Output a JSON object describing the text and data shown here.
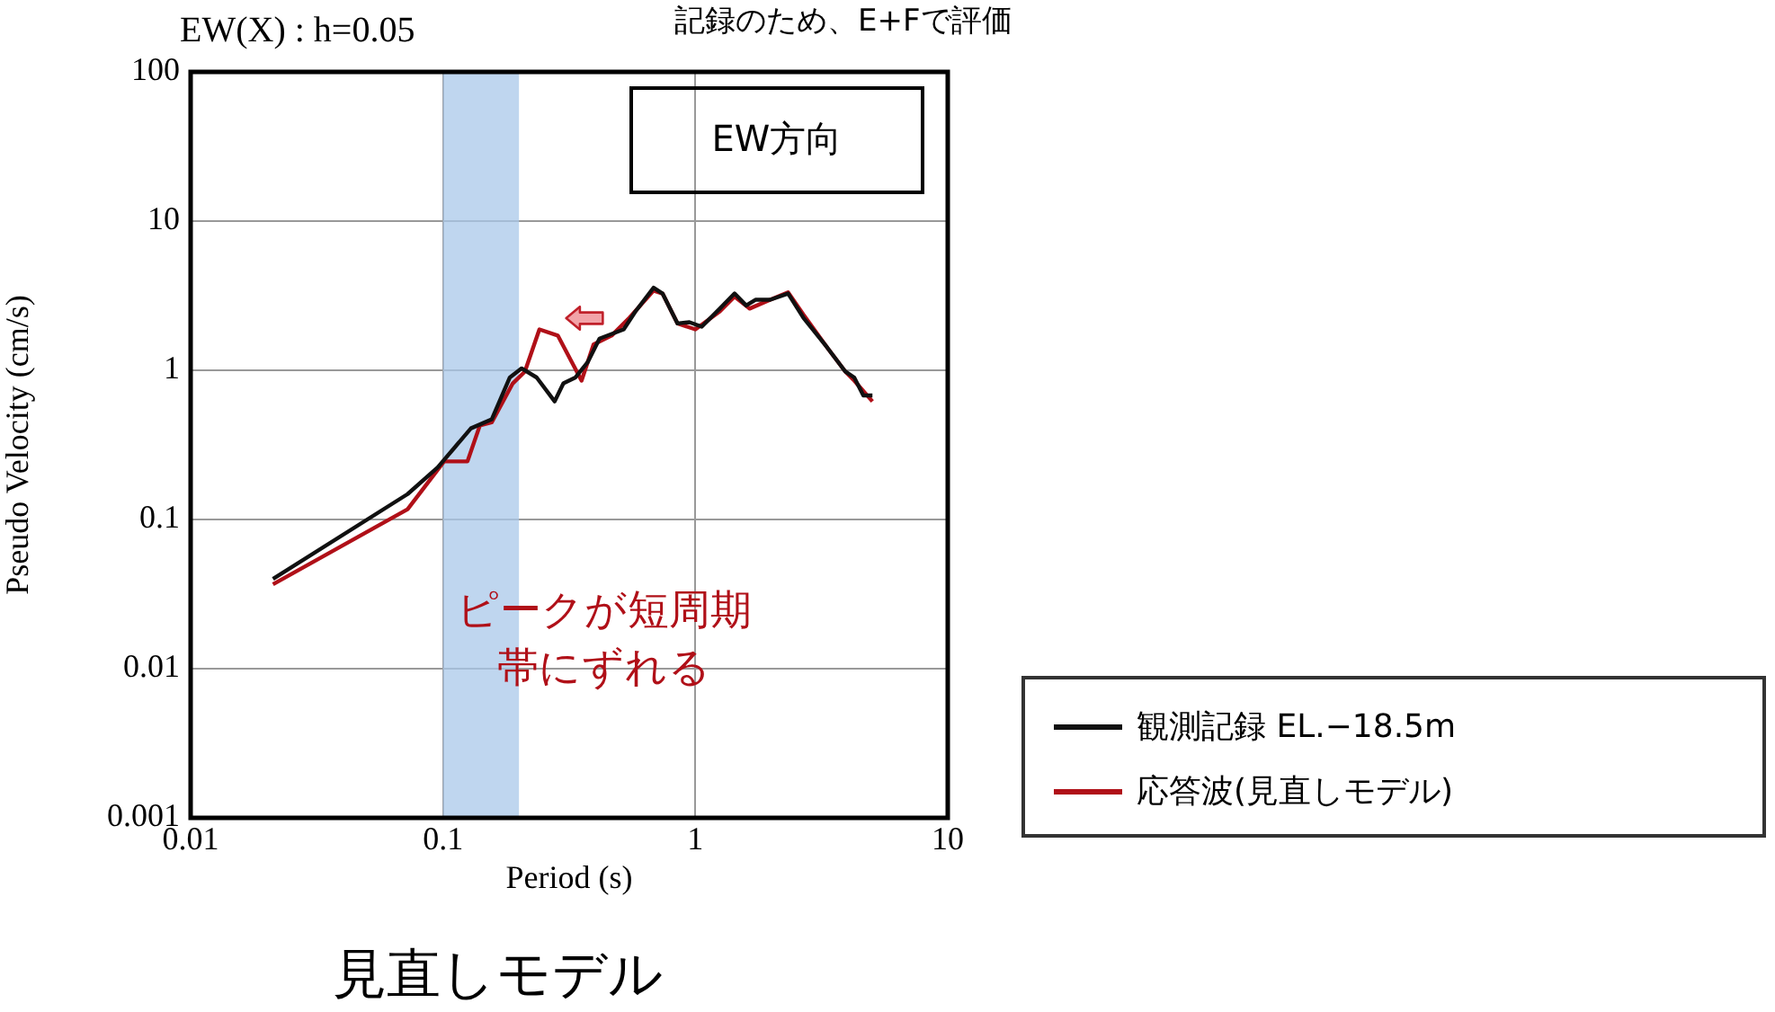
{
  "chart_data": {
    "type": "line",
    "title": "EW(X) : h=0.05",
    "xlabel": "Period (s)",
    "ylabel": "Pseudo Velocity (cm/s)",
    "log": "xy",
    "grid": true,
    "legend": "right",
    "marker": "none",
    "line_style": "solid",
    "xlim": [
      0.01,
      10
    ],
    "xticks": [
      0.01,
      0.1,
      1,
      10
    ],
    "ylim": [
      0.001,
      100
    ],
    "yticks": [
      0.001,
      0.01,
      0.1,
      1,
      10,
      100
    ],
    "bands": [
      {
        "axis": "x",
        "from": 0.1,
        "to": 0.2,
        "color": "#a9c8ea"
      }
    ],
    "annotations": [
      "記録のため、E+Fで評価",
      "EW方向",
      "ピークが短周期帯にずれる",
      "見直しモデル"
    ],
    "series": [
      {
        "name": "観測記録 EL.−18.5m",
        "color": "#111111",
        "x": [
          0.0212,
          0.0724,
          0.0952,
          0.129,
          0.156,
          0.184,
          0.205,
          0.235,
          0.277,
          0.3,
          0.335,
          0.374,
          0.417,
          0.52,
          0.579,
          0.683,
          0.741,
          0.85,
          0.947,
          1.06,
          1.25,
          1.43,
          1.59,
          1.73,
          1.98,
          2.33,
          2.68,
          3.33,
          3.93,
          4.26,
          4.63,
          5.03
        ],
        "values": [
          0.04,
          0.148,
          0.223,
          0.408,
          0.469,
          0.895,
          1.03,
          0.895,
          0.619,
          0.817,
          0.895,
          1.13,
          1.63,
          1.88,
          2.48,
          3.58,
          3.27,
          2.06,
          2.1,
          1.96,
          2.59,
          3.27,
          2.72,
          2.97,
          2.97,
          3.27,
          2.25,
          1.42,
          0.98,
          0.895,
          0.678,
          0.678
        ]
      },
      {
        "name": "応答波(見直しモデル)",
        "color": "#b01018",
        "x": [
          0.0212,
          0.0724,
          0.101,
          0.125,
          0.14,
          0.156,
          0.189,
          0.211,
          0.241,
          0.285,
          0.354,
          0.395,
          0.466,
          0.548,
          0.683,
          0.741,
          0.85,
          1.0,
          1.25,
          1.43,
          1.64,
          1.98,
          2.33,
          2.68,
          3.33,
          3.93,
          4.26,
          5.03
        ],
        "values": [
          0.0368,
          0.117,
          0.245,
          0.245,
          0.427,
          0.448,
          0.817,
          0.98,
          1.88,
          1.71,
          0.853,
          1.49,
          1.71,
          2.25,
          3.42,
          3.27,
          2.06,
          1.88,
          2.48,
          3.12,
          2.59,
          2.97,
          3.33,
          2.36,
          1.42,
          0.98,
          0.853,
          0.619
        ]
      }
    ]
  }
}
